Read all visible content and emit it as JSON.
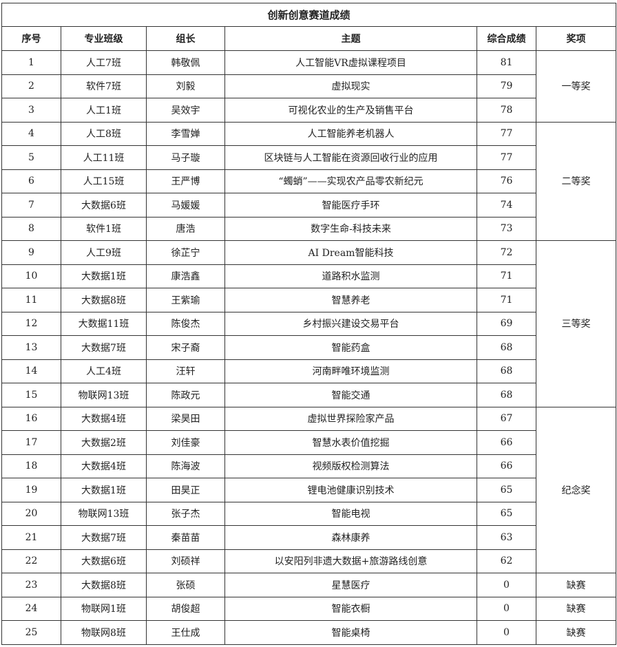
{
  "title": "创新创意赛道成绩",
  "headers": [
    "序号",
    "专业班级",
    "组长",
    "主题",
    "综合成绩",
    "奖项"
  ],
  "rows": [
    {
      "no": "1",
      "class": "人工7班",
      "leader": "韩敬佩",
      "topic": "人工智能VR虚拟课程项目",
      "score": "81"
    },
    {
      "no": "2",
      "class": "软件7班",
      "leader": "刘毅",
      "topic": "虚拟现实",
      "score": "79"
    },
    {
      "no": "3",
      "class": "人工1班",
      "leader": "吴效宇",
      "topic": "可视化农业的生产及销售平台",
      "score": "78"
    },
    {
      "no": "4",
      "class": "人工8班",
      "leader": "李雪婵",
      "topic": "人工智能养老机器人",
      "score": "77"
    },
    {
      "no": "5",
      "class": "人工11班",
      "leader": "马子璇",
      "topic": "区块链与人工智能在资源回收行业的应用",
      "score": "77"
    },
    {
      "no": "6",
      "class": "人工15班",
      "leader": "王严博",
      "topic": "“蠋蛸”——实现农产品零农新纪元",
      "score": "76"
    },
    {
      "no": "7",
      "class": "大数据6班",
      "leader": "马媛媛",
      "topic": "智能医疗手环",
      "score": "74"
    },
    {
      "no": "8",
      "class": "软件1班",
      "leader": "唐浩",
      "topic": "数字生命-科技未来",
      "score": "73"
    },
    {
      "no": "9",
      "class": "人工9班",
      "leader": "徐芷宁",
      "topic": "AI Dream智能科技",
      "score": "72"
    },
    {
      "no": "10",
      "class": "大数据1班",
      "leader": "康浩鑫",
      "topic": "道路积水监测",
      "score": "71"
    },
    {
      "no": "11",
      "class": "大数据8班",
      "leader": "王紫瑜",
      "topic": "智慧养老",
      "score": "71"
    },
    {
      "no": "12",
      "class": "大数据11班",
      "leader": "陈俊杰",
      "topic": "乡村振兴建设交易平台",
      "score": "69"
    },
    {
      "no": "13",
      "class": "大数据7班",
      "leader": "宋子裔",
      "topic": "智能药盒",
      "score": "68"
    },
    {
      "no": "14",
      "class": "人工4班",
      "leader": "汪轩",
      "topic": "河南畔唯环境监测",
      "score": "68"
    },
    {
      "no": "15",
      "class": "物联网13班",
      "leader": "陈政元",
      "topic": "智能交通",
      "score": "68"
    },
    {
      "no": "16",
      "class": "大数据4班",
      "leader": "梁昊田",
      "topic": "虚拟世界探险家产品",
      "score": "67"
    },
    {
      "no": "17",
      "class": "大数据2班",
      "leader": "刘佳豪",
      "topic": "智慧水表价值挖掘",
      "score": "66"
    },
    {
      "no": "18",
      "class": "大数据4班",
      "leader": "陈海波",
      "topic": "视频版权检测算法",
      "score": "66"
    },
    {
      "no": "19",
      "class": "大数据1班",
      "leader": "田昊正",
      "topic": "锂电池健康识别技术",
      "score": "65"
    },
    {
      "no": "20",
      "class": "物联网13班",
      "leader": "张子杰",
      "topic": "智能电视",
      "score": "65"
    },
    {
      "no": "21",
      "class": "大数据7班",
      "leader": "秦苗苗",
      "topic": "森林康养",
      "score": "63"
    },
    {
      "no": "22",
      "class": "大数据6班",
      "leader": "刘硕祥",
      "topic": "以安阳列非遗大数据+旅游路线创意",
      "score": "62"
    },
    {
      "no": "23",
      "class": "大数据8班",
      "leader": "张硕",
      "topic": "星慧医疗",
      "score": "0"
    },
    {
      "no": "24",
      "class": "物联网1班",
      "leader": "胡俊超",
      "topic": "智能衣橱",
      "score": "0"
    },
    {
      "no": "25",
      "class": "物联网8班",
      "leader": "王仕成",
      "topic": "智能桌椅",
      "score": "0"
    }
  ],
  "awards": [
    {
      "label": "一等奖",
      "from": 1,
      "to": 3
    },
    {
      "label": "二等奖",
      "from": 4,
      "to": 8
    },
    {
      "label": "三等奖",
      "from": 9,
      "to": 15
    },
    {
      "label": "纪念奖",
      "from": 16,
      "to": 22
    },
    {
      "label": "缺赛",
      "from": 23,
      "to": 23
    },
    {
      "label": "缺赛",
      "from": 24,
      "to": 24
    },
    {
      "label": "缺赛",
      "from": 25,
      "to": 25
    }
  ]
}
